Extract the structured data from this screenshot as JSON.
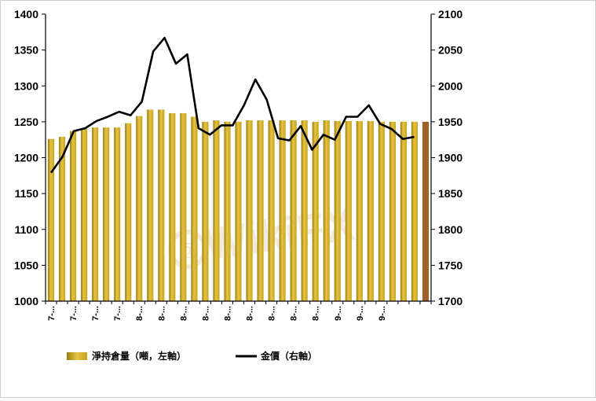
{
  "chart_data": {
    "type": "bar",
    "title": "",
    "xlabel": "",
    "ylabel": "",
    "ylim": [
      1000,
      1400
    ],
    "y2lim": [
      1700,
      2100
    ],
    "y_ticks": [
      "1000",
      "1050",
      "1100",
      "1150",
      "1200",
      "1250",
      "1300",
      "1350",
      "1400"
    ],
    "y2_ticks": [
      "1700",
      "1750",
      "1800",
      "1850",
      "1900",
      "1950",
      "2000",
      "2050",
      "2100"
    ],
    "x_tick_labels": [
      "7-...",
      "7-...",
      "7-...",
      "7-...",
      "8-...",
      "8-...",
      "8-...",
      "8-...",
      "8-...",
      "8-...",
      "8-...",
      "8-...",
      "8-...",
      "9-...",
      "9-...",
      "9-..."
    ],
    "x_tick_every": 2,
    "series": [
      {
        "name": "淨持倉量（噸，左軸）",
        "kind": "bar",
        "axis": "left",
        "values": [
          1226,
          1229,
          1237,
          1240,
          1242,
          1242,
          1242,
          1248,
          1258,
          1267,
          1267,
          1262,
          1262,
          1257,
          1250,
          1252,
          1250,
          1250,
          1252,
          1252,
          1252,
          1252,
          1252,
          1252,
          1250,
          1252,
          1251,
          1251,
          1251,
          1251,
          1250,
          1250,
          1250,
          1250,
          1250
        ],
        "highlight_last": true
      },
      {
        "name": "金價（右軸）",
        "kind": "line",
        "axis": "right",
        "values": [
          1879,
          1901,
          1937,
          1941,
          1951,
          1957,
          1964,
          1959,
          1978,
          2048,
          2067,
          2031,
          2044,
          1941,
          1932,
          1945,
          1945,
          1973,
          2009,
          1981,
          1927,
          1924,
          1944,
          1911,
          1932,
          1925,
          1957,
          1957,
          1973,
          1947,
          1940,
          1926,
          1929
        ]
      }
    ],
    "colors": {
      "bar": "#c9a21a",
      "bar_light": "#e4c547",
      "bar_dark": "#9c7b0c",
      "bar_last": "#a0602a",
      "line": "#000000",
      "axis": "#000000"
    },
    "legend_position": "bottom",
    "grid": false
  },
  "watermark": {
    "text": "WikiFX"
  },
  "legend": {
    "bar_label": "淨持倉量（噸，左軸）",
    "line_label": "金價（右軸）"
  }
}
